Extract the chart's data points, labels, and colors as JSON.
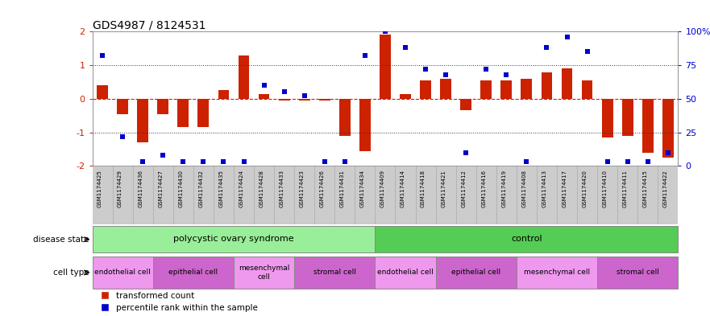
{
  "title": "GDS4987 / 8124531",
  "samples": [
    "GSM1174425",
    "GSM1174429",
    "GSM1174436",
    "GSM1174427",
    "GSM1174430",
    "GSM1174432",
    "GSM1174435",
    "GSM1174424",
    "GSM1174428",
    "GSM1174433",
    "GSM1174423",
    "GSM1174426",
    "GSM1174431",
    "GSM1174434",
    "GSM1174409",
    "GSM1174414",
    "GSM1174418",
    "GSM1174421",
    "GSM1174412",
    "GSM1174416",
    "GSM1174419",
    "GSM1174408",
    "GSM1174413",
    "GSM1174417",
    "GSM1174420",
    "GSM1174410",
    "GSM1174411",
    "GSM1174415",
    "GSM1174422"
  ],
  "bar_values": [
    0.4,
    -0.45,
    -1.3,
    -0.45,
    -0.85,
    -0.85,
    0.27,
    1.3,
    0.15,
    -0.05,
    -0.05,
    -0.05,
    -1.1,
    -1.55,
    1.9,
    0.15,
    0.55,
    0.6,
    -0.35,
    0.55,
    0.55,
    0.6,
    0.78,
    0.9,
    0.55,
    -1.15,
    -1.1,
    -1.6,
    -1.75
  ],
  "percentile_values": [
    82,
    22,
    3,
    8,
    3,
    3,
    3,
    3,
    60,
    55,
    52,
    3,
    3,
    82,
    100,
    88,
    72,
    68,
    10,
    72,
    68,
    3,
    88,
    96,
    85,
    3,
    3,
    3,
    10
  ],
  "ylim": [
    -2,
    2
  ],
  "ylim_right": [
    0,
    100
  ],
  "bar_color": "#cc2200",
  "dot_color": "#0000cc",
  "hline_zero_color": "#cc2200",
  "hline_dotted_color": "#333333",
  "disease_groups": [
    {
      "label": "polycystic ovary syndrome",
      "start": 0,
      "end": 14,
      "color": "#99ee99"
    },
    {
      "label": "control",
      "start": 14,
      "end": 29,
      "color": "#55cc55"
    }
  ],
  "cell_type_groups": [
    {
      "label": "endothelial cell",
      "start": 0,
      "end": 3,
      "color": "#ee99ee"
    },
    {
      "label": "epithelial cell",
      "start": 3,
      "end": 7,
      "color": "#cc66cc"
    },
    {
      "label": "mesenchymal\ncell",
      "start": 7,
      "end": 10,
      "color": "#ee99ee"
    },
    {
      "label": "stromal cell",
      "start": 10,
      "end": 14,
      "color": "#cc66cc"
    },
    {
      "label": "endothelial cell",
      "start": 14,
      "end": 17,
      "color": "#ee99ee"
    },
    {
      "label": "epithelial cell",
      "start": 17,
      "end": 21,
      "color": "#cc66cc"
    },
    {
      "label": "mesenchymal cell",
      "start": 21,
      "end": 25,
      "color": "#ee99ee"
    },
    {
      "label": "stromal cell",
      "start": 25,
      "end": 29,
      "color": "#cc66cc"
    }
  ],
  "legend_items": [
    {
      "label": "transformed count",
      "color": "#cc2200"
    },
    {
      "label": "percentile rank within the sample",
      "color": "#0000cc"
    }
  ],
  "disease_state_label": "disease state",
  "cell_type_label": "cell type",
  "sample_label_color": "#888888",
  "separator_color": "#aaaaaa",
  "bg_color": "#cccccc"
}
